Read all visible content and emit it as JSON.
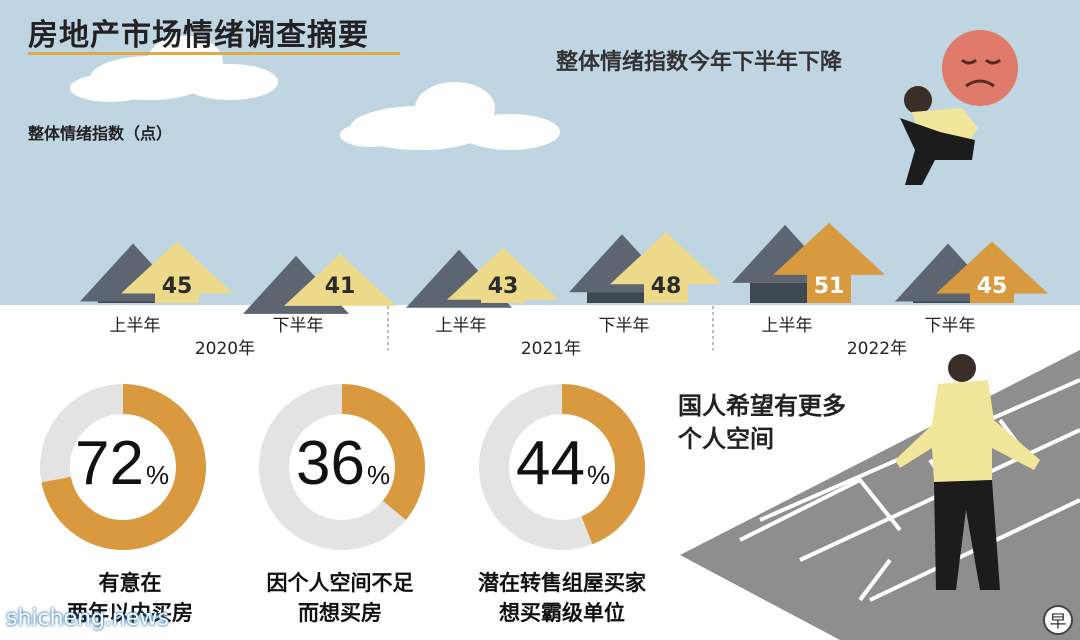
{
  "title": "房地产市场情绪调查摘要",
  "subtitle": "整体情绪指数今年下半年下降",
  "unit_label": "整体情绪指数（点）",
  "chart_data": [
    {
      "type": "bar",
      "title": "房地产市场情绪调查摘要",
      "ylabel": "整体情绪指数（点）",
      "categories": [
        "2020年上半年",
        "2020年下半年",
        "2021年上半年",
        "2021年下半年",
        "2022年上半年",
        "2022年下半年"
      ],
      "half_labels": [
        "上半年",
        "下半年",
        "上半年",
        "下半年",
        "上半年",
        "下半年"
      ],
      "years": [
        "2020年",
        "2021年",
        "2022年"
      ],
      "values": [
        45,
        41,
        43,
        48,
        51,
        45
      ]
    },
    {
      "type": "pie",
      "items": [
        {
          "value": 72,
          "number": "72",
          "symbol": "%",
          "caption": [
            "有意在",
            "两年以内买房"
          ]
        },
        {
          "value": 36,
          "number": "36",
          "symbol": "%",
          "caption": [
            "因个人空间不足",
            "而想买房"
          ]
        },
        {
          "value": 44,
          "number": "44",
          "symbol": "%",
          "caption": [
            "潜在转售组屋买家",
            "想买霸级单位"
          ]
        }
      ]
    }
  ],
  "side_text": [
    "国人希望有更多",
    "个人空间"
  ],
  "watermark": "shicheng.news",
  "logo_text": "早",
  "colors": {
    "sky": "#bfd5e2",
    "roof_dark": "#5d6670",
    "wall_dark": "#3f474f",
    "arrow_light": "#ecd98a",
    "arrow_orange": "#d99a3f",
    "donut_track": "#e3e3e3",
    "donut_fill": "#d99a3f",
    "shirt": "#f1e69a",
    "floor": "#8e8e8e"
  }
}
